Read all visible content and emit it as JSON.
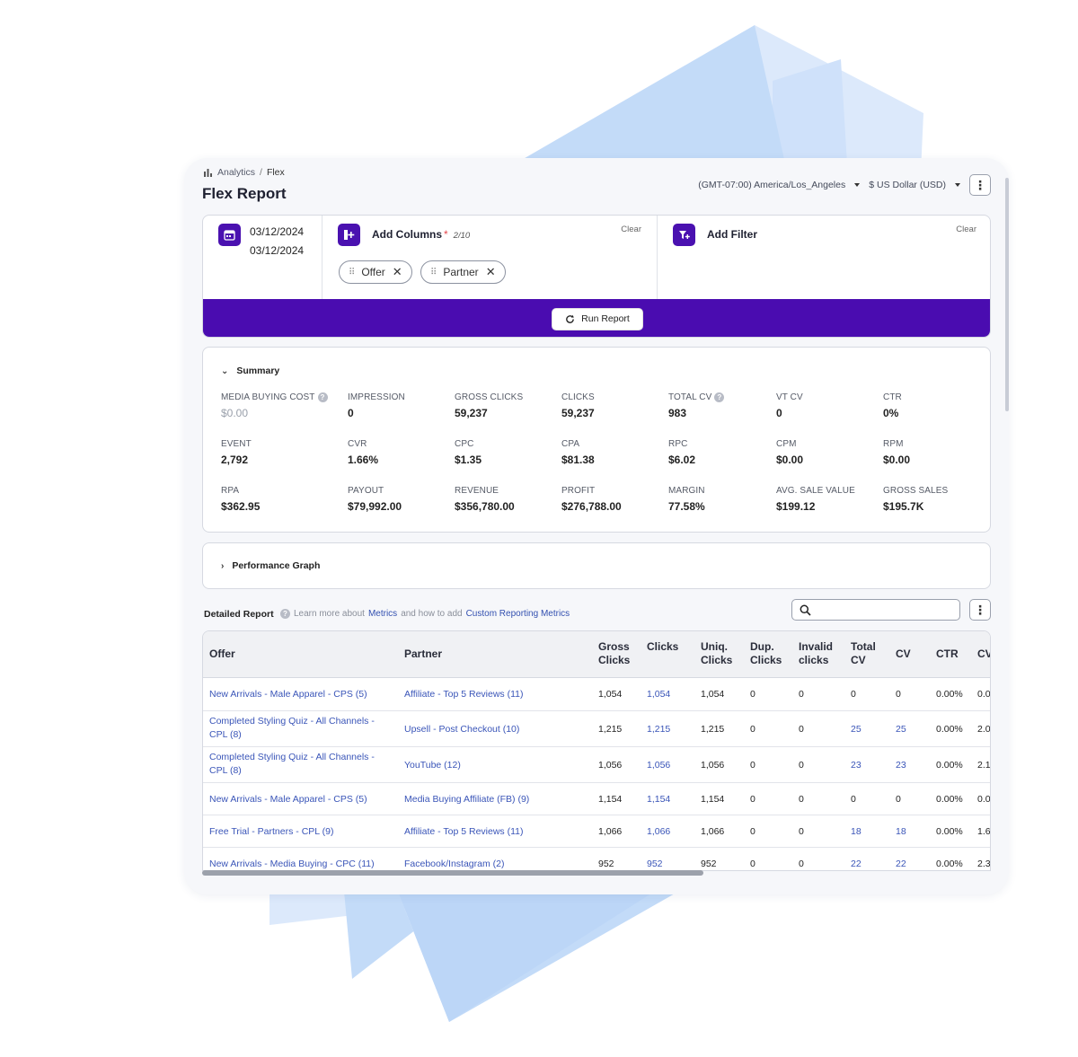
{
  "breadcrumb": {
    "root": "Analytics",
    "separator": "/",
    "current": "Flex"
  },
  "page_title": "Flex Report",
  "header": {
    "timezone": "(GMT-07:00) America/Los_Angeles",
    "currency": "$ US Dollar (USD)"
  },
  "builder": {
    "date_start": "03/12/2024",
    "date_end": "03/12/2024",
    "add_columns_label": "Add Columns",
    "required_mark": "*",
    "columns_count": "2/10",
    "columns_clear": "Clear",
    "chips": [
      "Offer",
      "Partner"
    ],
    "add_filter_label": "Add Filter",
    "filter_clear": "Clear",
    "run_label": "Run Report"
  },
  "summary": {
    "title": "Summary",
    "metrics": [
      {
        "label": "MEDIA BUYING COST",
        "value": "$0.00"
      },
      {
        "label": "IMPRESSION",
        "value": "0"
      },
      {
        "label": "GROSS CLICKS",
        "value": "59,237"
      },
      {
        "label": "CLICKS",
        "value": "59,237"
      },
      {
        "label": "TOTAL CV",
        "value": "983"
      },
      {
        "label": "VT CV",
        "value": "0"
      },
      {
        "label": "CTR",
        "value": "0%"
      },
      {
        "label": "EVENT",
        "value": "2,792"
      },
      {
        "label": "CVR",
        "value": "1.66%"
      },
      {
        "label": "CPC",
        "value": "$1.35"
      },
      {
        "label": "CPA",
        "value": "$81.38"
      },
      {
        "label": "RPC",
        "value": "$6.02"
      },
      {
        "label": "CPM",
        "value": "$0.00"
      },
      {
        "label": "RPM",
        "value": "$0.00"
      },
      {
        "label": "RPA",
        "value": "$362.95"
      },
      {
        "label": "PAYOUT",
        "value": "$79,992.00"
      },
      {
        "label": "REVENUE",
        "value": "$356,780.00"
      },
      {
        "label": "PROFIT",
        "value": "$276,788.00"
      },
      {
        "label": "MARGIN",
        "value": "77.58%"
      },
      {
        "label": "AVG. SALE VALUE",
        "value": "$199.12"
      },
      {
        "label": "GROSS SALES",
        "value": "$195.7K"
      }
    ]
  },
  "graph": {
    "title": "Performance Graph"
  },
  "detail": {
    "title": "Detailed Report",
    "learn_prefix": "Learn more about",
    "learn_metrics": "Metrics",
    "learn_middle": "and how to add",
    "learn_custom": "Custom Reporting Metrics"
  },
  "table": {
    "headers": [
      "Offer",
      "Partner",
      "Gross Clicks",
      "Clicks",
      "Uniq. Clicks",
      "Dup. Clicks",
      "Invalid clicks",
      "Total CV",
      "CV",
      "CTR",
      "CV"
    ],
    "rows": [
      [
        "New Arrivals - Male Apparel - CPS (5)",
        "Affiliate - Top 5 Reviews (11)",
        "1,054",
        "1,054",
        "1,054",
        "0",
        "0",
        "0",
        "0",
        "0.00%",
        "0.0"
      ],
      [
        "Completed Styling Quiz - All Channels - CPL (8)",
        "Upsell - Post Checkout (10)",
        "1,215",
        "1,215",
        "1,215",
        "0",
        "0",
        "25",
        "25",
        "0.00%",
        "2.0"
      ],
      [
        "Completed Styling Quiz - All Channels - CPL (8)",
        "YouTube (12)",
        "1,056",
        "1,056",
        "1,056",
        "0",
        "0",
        "23",
        "23",
        "0.00%",
        "2.1"
      ],
      [
        "New Arrivals - Male Apparel - CPS (5)",
        "Media Buying Affiliate (FB) (9)",
        "1,154",
        "1,154",
        "1,154",
        "0",
        "0",
        "0",
        "0",
        "0.00%",
        "0.0"
      ],
      [
        "Free Trial - Partners - CPL (9)",
        "Affiliate - Top 5 Reviews (11)",
        "1,066",
        "1,066",
        "1,066",
        "0",
        "0",
        "18",
        "18",
        "0.00%",
        "1.6"
      ],
      [
        "New Arrivals - Media Buying - CPC (11)",
        "Facebook/Instagram (2)",
        "952",
        "952",
        "952",
        "0",
        "0",
        "22",
        "22",
        "0.00%",
        "2.3"
      ]
    ]
  }
}
